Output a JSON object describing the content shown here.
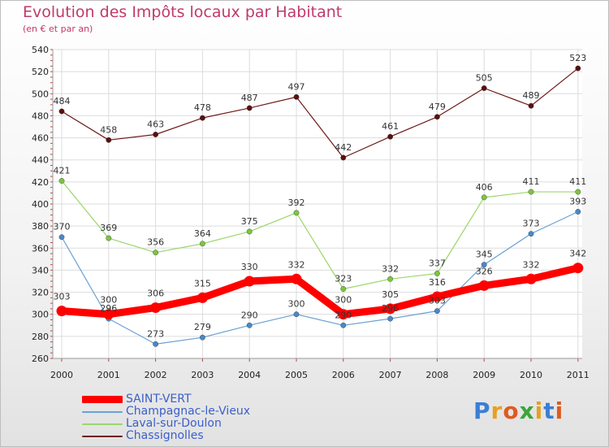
{
  "chart_data": {
    "type": "line",
    "title": "Evolution des Impôts locaux par Habitant",
    "subtitle": "(en € et par an)",
    "xlabel": "",
    "ylabel": "",
    "categories": [
      "2000",
      "2001",
      "2002",
      "2003",
      "2004",
      "2005",
      "2006",
      "2007",
      "2008",
      "2009",
      "2010",
      "2011"
    ],
    "ylim": [
      260,
      540
    ],
    "yticks": [
      260,
      280,
      300,
      320,
      340,
      360,
      380,
      400,
      420,
      440,
      460,
      480,
      500,
      520,
      540
    ],
    "grid": true,
    "legend_position": "bottom-left",
    "series": [
      {
        "name": "Chassignolles",
        "color": "#6e1a1a",
        "point_color": "#5a0f0f",
        "width": 1.2,
        "radius": 3.2,
        "values": [
          484,
          458,
          463,
          478,
          487,
          497,
          442,
          461,
          479,
          505,
          489,
          523
        ]
      },
      {
        "name": "Laval-sur-Doulon",
        "color": "#9ad66a",
        "point_color": "#7cc63e",
        "width": 1.2,
        "radius": 3.2,
        "values": [
          421,
          369,
          356,
          364,
          375,
          392,
          323,
          332,
          337,
          406,
          411,
          411
        ]
      },
      {
        "name": "Champagnac-le-Vieux",
        "color": "#6aa0d4",
        "point_color": "#4a88c8",
        "width": 1.2,
        "radius": 3.2,
        "values": [
          370,
          296,
          273,
          279,
          290,
          300,
          290,
          296,
          303,
          345,
          373,
          393
        ]
      },
      {
        "name": "SAINT-VERT",
        "color": "#ff0000",
        "point_color": "#ff0000",
        "width": 9,
        "radius": 6.5,
        "values": [
          303,
          300,
          306,
          315,
          330,
          332,
          300,
          305,
          316,
          326,
          332,
          342
        ]
      }
    ],
    "labels": [
      {
        "series": "Chassignolles",
        "position": "above",
        "text": [
          "484",
          "458",
          "463",
          "478",
          "487",
          "497",
          "442",
          "461",
          "479",
          "505",
          "489",
          "523"
        ]
      },
      {
        "series": "Laval-sur-Doulon",
        "position": "above",
        "text": [
          "421",
          "369",
          "356",
          "364",
          "375",
          "392",
          "323",
          "332",
          "337",
          "406",
          "411",
          "411"
        ]
      },
      {
        "series": "Champagnac-le-Vieux",
        "position": "above",
        "text": [
          "370",
          "296",
          "273",
          "279",
          "290",
          "300",
          "290",
          "296",
          "303",
          "345",
          "373",
          "393"
        ]
      },
      {
        "series": "SAINT-VERT",
        "position": "above",
        "text": [
          "303",
          "300",
          "306",
          "315",
          "330",
          "332",
          "300",
          "305",
          "316",
          "326",
          "332",
          "342"
        ]
      }
    ]
  },
  "legend": [
    {
      "label": "SAINT-VERT",
      "color": "#ff0000"
    },
    {
      "label": "Champagnac-le-Vieux",
      "color": "#6aa0d4"
    },
    {
      "label": "Laval-sur-Doulon",
      "color": "#9ad66a"
    },
    {
      "label": "Chassignolles",
      "color": "#6e1a1a"
    }
  ],
  "logo": {
    "text": "Proxiti",
    "colors": [
      "#3a7fd5",
      "#e8a020",
      "#e05a1e",
      "#3aa63a",
      "#e8a020",
      "#3a7fd5",
      "#e05a1e"
    ]
  }
}
